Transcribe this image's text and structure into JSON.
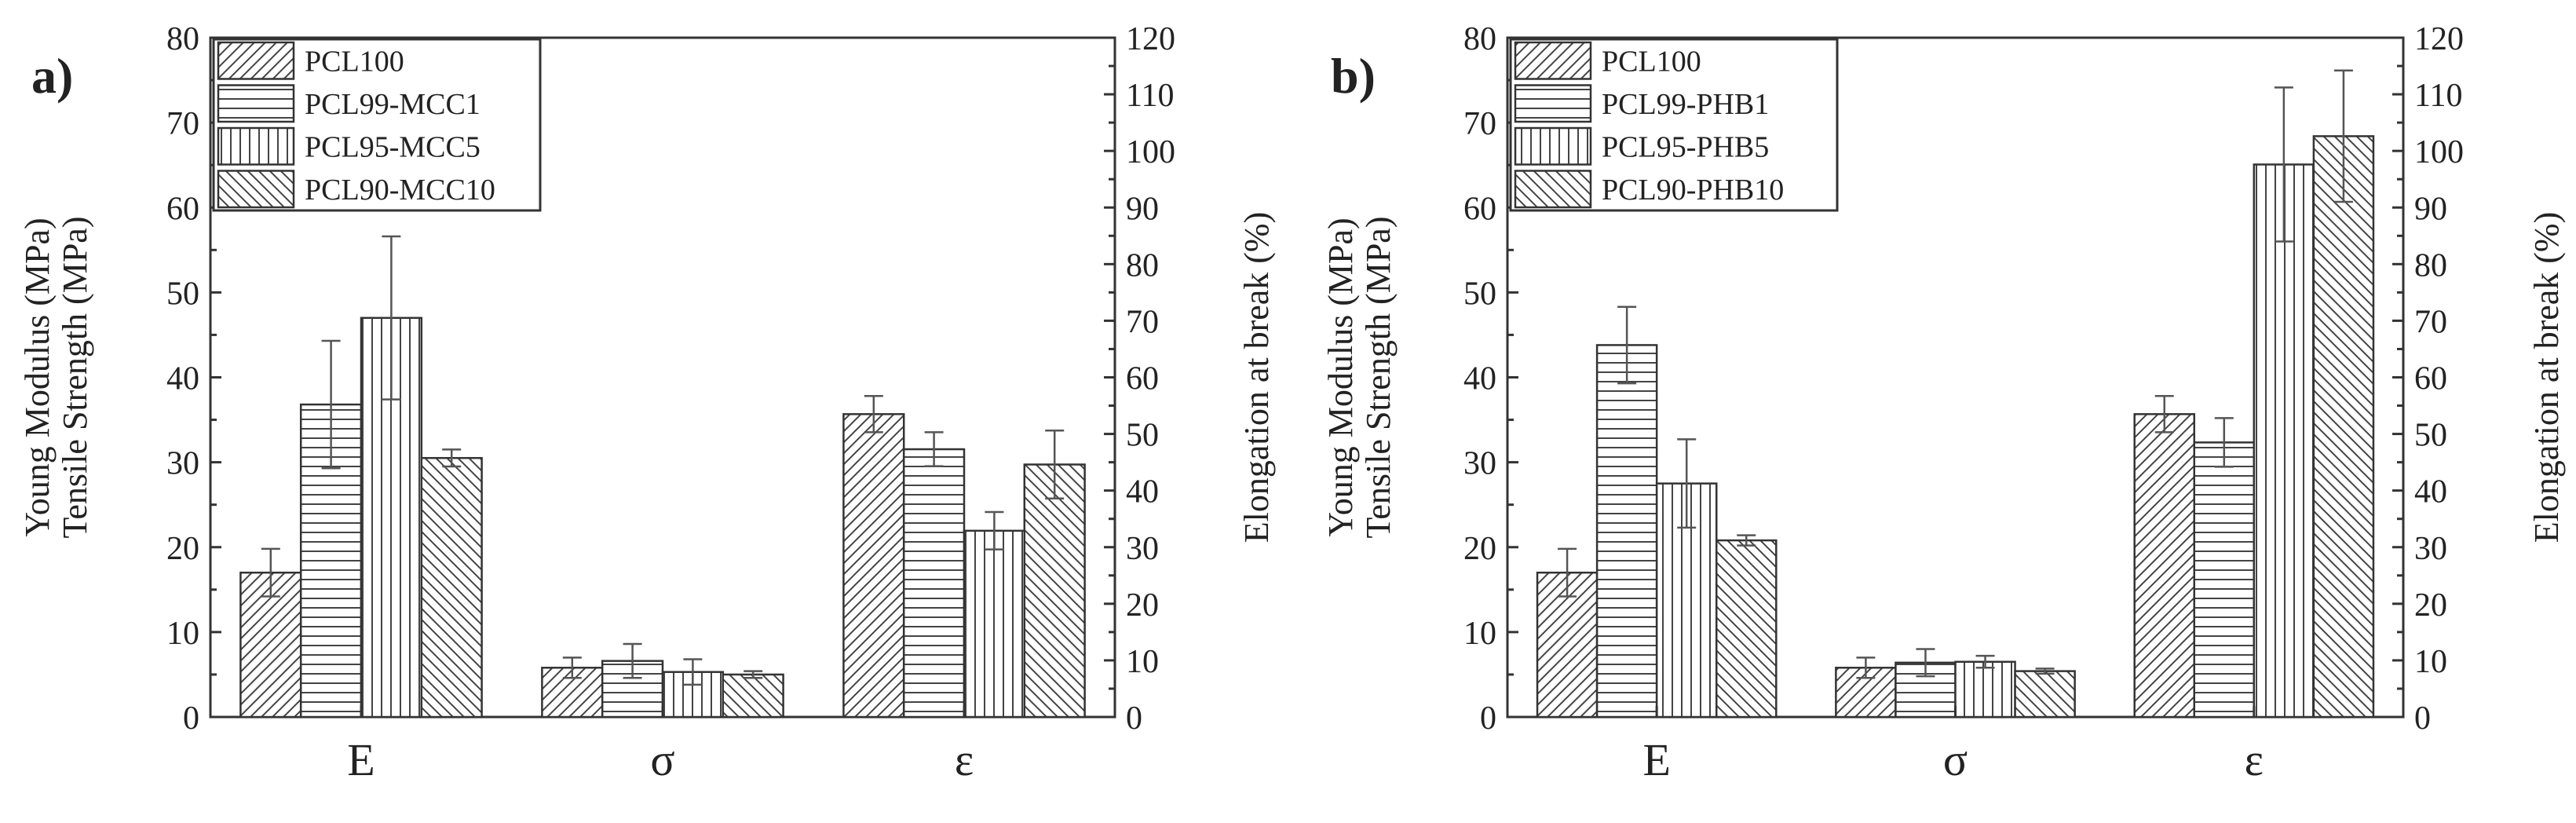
{
  "chart_data": [
    {
      "type": "bar",
      "panel_label": "a)",
      "categories": [
        "E",
        "σ",
        "ε"
      ],
      "ylabel_left_lines": [
        "Young Modulus (MPa)",
        "Tensile Strength (MPa)"
      ],
      "ylabel_right": "Elongation at break (%)",
      "ylim_left": [
        0,
        80
      ],
      "yticks_left": [
        0,
        10,
        20,
        30,
        40,
        50,
        60,
        70,
        80
      ],
      "ylim_right": [
        0,
        120
      ],
      "yticks_right": [
        0,
        10,
        20,
        30,
        40,
        50,
        60,
        70,
        80,
        90,
        100,
        110,
        120
      ],
      "legend_position": "top-left",
      "series": [
        {
          "name": "PCL100",
          "pattern": "diag-right",
          "values": [
            17.0,
            5.8,
            53.5
          ],
          "errors": [
            2.8,
            1.2,
            3.2
          ],
          "axes": [
            "left",
            "left",
            "right"
          ]
        },
        {
          "name": "PCL99-MCC1",
          "pattern": "horizontal",
          "values": [
            36.8,
            6.6,
            47.3
          ],
          "errors": [
            7.5,
            2.0,
            3.0
          ],
          "axes": [
            "left",
            "left",
            "right"
          ]
        },
        {
          "name": "PCL95-MCC5",
          "pattern": "vertical",
          "values": [
            47.0,
            5.3,
            32.9
          ],
          "errors": [
            9.6,
            1.5,
            3.3
          ],
          "axes": [
            "left",
            "left",
            "right"
          ]
        },
        {
          "name": "PCL90-MCC10",
          "pattern": "diag-left",
          "values": [
            30.5,
            5.0,
            44.6
          ],
          "errors": [
            1.0,
            0.4,
            6.0
          ],
          "axes": [
            "left",
            "left",
            "right"
          ]
        }
      ]
    },
    {
      "type": "bar",
      "panel_label": "b)",
      "categories": [
        "E",
        "σ",
        "ε"
      ],
      "ylabel_left_lines": [
        "Young Modulus (MPa)",
        "Tensile Strength (MPa)"
      ],
      "ylabel_right": "Elongation at break (%)",
      "ylim_left": [
        0,
        80
      ],
      "yticks_left": [
        0,
        10,
        20,
        30,
        40,
        50,
        60,
        70,
        80
      ],
      "ylim_right": [
        0,
        120
      ],
      "yticks_right": [
        0,
        10,
        20,
        30,
        40,
        50,
        60,
        70,
        80,
        90,
        100,
        110,
        120
      ],
      "legend_position": "top-left",
      "series": [
        {
          "name": "PCL100",
          "pattern": "diag-right",
          "values": [
            17.0,
            5.8,
            53.5
          ],
          "errors": [
            2.8,
            1.2,
            3.2
          ],
          "axes": [
            "left",
            "left",
            "right"
          ]
        },
        {
          "name": "PCL99-PHB1",
          "pattern": "horizontal",
          "values": [
            43.8,
            6.4,
            48.5
          ],
          "errors": [
            4.5,
            1.6,
            4.3
          ],
          "axes": [
            "left",
            "left",
            "right"
          ]
        },
        {
          "name": "PCL95-PHB5",
          "pattern": "vertical",
          "values": [
            27.5,
            6.5,
            97.6
          ],
          "errors": [
            5.2,
            0.7,
            13.6
          ],
          "axes": [
            "left",
            "left",
            "right"
          ]
        },
        {
          "name": "PCL90-PHB10",
          "pattern": "diag-left",
          "values": [
            20.8,
            5.4,
            102.6
          ],
          "errors": [
            0.6,
            0.3,
            11.6
          ],
          "axes": [
            "left",
            "left",
            "right"
          ]
        }
      ]
    }
  ]
}
